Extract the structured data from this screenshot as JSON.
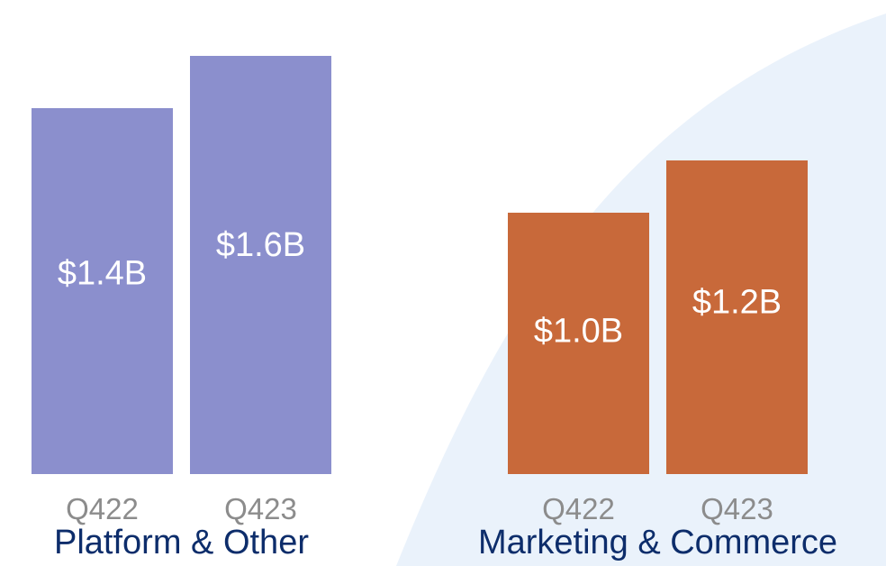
{
  "chart_data": [
    {
      "type": "bar",
      "title": "Platform & Other",
      "categories": [
        "Q422",
        "Q423"
      ],
      "values": [
        1.4,
        1.6
      ],
      "value_labels": [
        "$1.4B",
        "$1.6B"
      ],
      "unit": "B",
      "color": "#8b8fcd",
      "ylim": [
        0,
        1.6
      ],
      "grid": false
    },
    {
      "type": "bar",
      "title": "Marketing & Commerce",
      "categories": [
        "Q422",
        "Q423"
      ],
      "values": [
        1.0,
        1.2
      ],
      "value_labels": [
        "$1.0B",
        "$1.2B"
      ],
      "unit": "B",
      "color": "#c8693a",
      "ylim": [
        0,
        1.6
      ],
      "grid": false
    }
  ],
  "colors": {
    "background": "#ffffff",
    "accent_curve": "#eaf2fb",
    "tick_text": "#8c8c8c",
    "title_text": "#0d2d6b",
    "bar_text": "#ffffff"
  }
}
